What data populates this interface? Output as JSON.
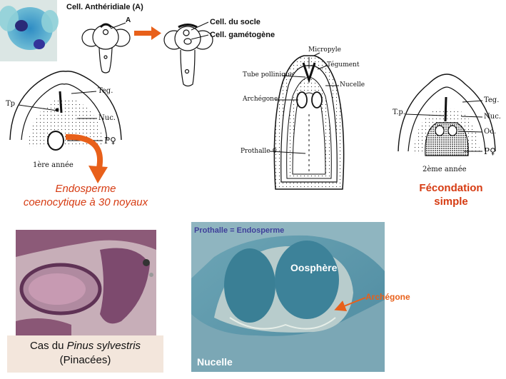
{
  "pollen_panel": {
    "anth_label": "Cell. Anthéridiale (A)",
    "a_marker": "A",
    "socle_label": "Cell. du socle",
    "gameto_label": "Cell. gamétogène"
  },
  "left_diagram": {
    "teg": "Teg.",
    "tp": "Tp",
    "nuc": "Nuc.",
    "po": "P♀",
    "year": "1ère année"
  },
  "endosperm_caption": {
    "line1": "Endosperme",
    "line2": "coenocytique à 30 noyaux"
  },
  "center_diagram": {
    "micropyle": "Micropyle",
    "tegument": "Tégument",
    "tube": "Tube pollinique",
    "nucelle": "Nucelle",
    "archegone": "Archégone",
    "prothalle": "Prothalle ♀"
  },
  "right_diagram": {
    "teg": "Teg.",
    "tp": "T.p.",
    "nuc": "Nuc.",
    "oo": "Oo.",
    "po": "P♀",
    "year": "2ème année"
  },
  "fecondation": {
    "line1": "Fécondation",
    "line2": "simple"
  },
  "pinus_caption": {
    "prefix": "Cas du ",
    "species": "Pinus sylvestris",
    "family": "(Pinacées)"
  },
  "micrograph": {
    "title": "Prothalle = Endosperme",
    "oosphere": "Oosphère",
    "archegone": "Archégone",
    "nucelle": "Nucelle"
  },
  "colors": {
    "accent": "#d63b12",
    "stain_blue": "#4d8aa0",
    "caption_bg": "#f3e6dc"
  }
}
